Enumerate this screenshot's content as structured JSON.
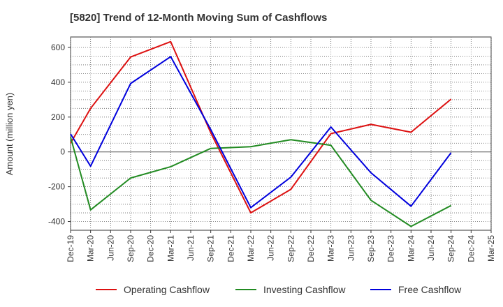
{
  "chart_data": {
    "type": "line",
    "title": "[5820]  Trend of 12-Month Moving Sum of Cashflows",
    "xlabel": "",
    "ylabel": "Amount (million yen)",
    "categories": [
      "Dec-19",
      "Mar-20",
      "Jun-20",
      "Sep-20",
      "Dec-20",
      "Mar-21",
      "Jun-21",
      "Sep-21",
      "Dec-21",
      "Mar-22",
      "Jun-22",
      "Sep-22",
      "Dec-22",
      "Mar-23",
      "Jun-23",
      "Sep-23",
      "Dec-23",
      "Mar-24",
      "Jun-24",
      "Sep-24",
      "Dec-24",
      "Mar-25"
    ],
    "ylim": [
      -450,
      660
    ],
    "yticks": [
      -400,
      -200,
      0,
      200,
      400,
      600
    ],
    "ytick_labels": [
      "-400",
      "-200",
      "0",
      "200",
      "400",
      "600"
    ],
    "grid": true,
    "legend_position": "bottom",
    "series": [
      {
        "name": "Operating Cashflow",
        "color": "#dd1111",
        "values": [
          50,
          250,
          null,
          545,
          null,
          633,
          null,
          110,
          null,
          -350,
          null,
          -215,
          null,
          105,
          null,
          158,
          null,
          113,
          null,
          303,
          null,
          null
        ]
      },
      {
        "name": "Investing Cashflow",
        "color": "#228B22",
        "values": [
          85,
          -333,
          null,
          -150,
          null,
          -85,
          null,
          20,
          null,
          30,
          null,
          70,
          null,
          38,
          null,
          -278,
          null,
          -428,
          null,
          -308,
          null,
          null
        ]
      },
      {
        "name": "Free Cashflow",
        "color": "#0000dd",
        "values": [
          103,
          -82,
          null,
          393,
          null,
          547,
          null,
          128,
          null,
          -320,
          null,
          -145,
          null,
          143,
          null,
          -120,
          null,
          -312,
          null,
          -5,
          null,
          null
        ]
      }
    ]
  }
}
